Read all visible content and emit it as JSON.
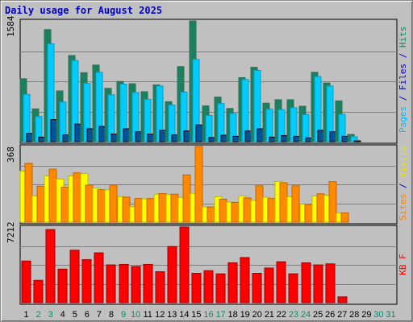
{
  "title": "Daily usage for August 2025",
  "chart_data": {
    "type": "bar",
    "title": "Daily usage for August 2025",
    "categories": [
      "1",
      "2",
      "3",
      "4",
      "5",
      "6",
      "7",
      "8",
      "9",
      "10",
      "11",
      "12",
      "13",
      "14",
      "15",
      "16",
      "17",
      "18",
      "19",
      "20",
      "21",
      "22",
      "23",
      "24",
      "25",
      "26",
      "27",
      "28",
      "29",
      "30",
      "31"
    ],
    "weekend_days": [
      "2",
      "3",
      "9",
      "10",
      "16",
      "17",
      "23",
      "24",
      "30",
      "31"
    ],
    "panels": [
      {
        "id": "hits-files-pages",
        "ymax_label": "1584",
        "ymax": 1584,
        "axis_label": [
          {
            "text": "Pages",
            "color": "#00bfff"
          },
          {
            "text": " / ",
            "color": "#0000c8"
          },
          {
            "text": "Files",
            "color": "#0000c8"
          },
          {
            "text": " / ",
            "color": "#0000c8"
          },
          {
            "text": "Hits",
            "color": "#00906b"
          }
        ],
        "series": [
          {
            "name": "Hits",
            "color": "#1a8060",
            "values": [
              825,
              430,
              1470,
              665,
              1130,
              905,
              1005,
              700,
              790,
              760,
              655,
              745,
              525,
              985,
              1584,
              470,
              585,
              435,
              840,
              975,
              505,
              550,
              550,
              465,
              910,
              770,
              535,
              95,
              0,
              0,
              0
            ]
          },
          {
            "name": "Files",
            "color": "#00ccff",
            "values": [
              620,
              330,
              1285,
              520,
              1065,
              765,
              910,
              615,
              755,
              645,
              555,
              730,
              480,
              650,
              1080,
              345,
              500,
              370,
              815,
              935,
              425,
              420,
              445,
              355,
              855,
              730,
              360,
              65,
              0,
              0,
              0
            ]
          },
          {
            "name": "Pages",
            "color": "#00529b",
            "values": [
              110,
              60,
              290,
              90,
              230,
              170,
              200,
              100,
              170,
              130,
              100,
              150,
              90,
              140,
              220,
              55,
              85,
              70,
              140,
              170,
              60,
              80,
              70,
              50,
              150,
              130,
              70,
              10,
              0,
              0,
              0
            ]
          }
        ]
      },
      {
        "id": "visits-sites",
        "ymax_label": "368",
        "ymax": 368,
        "axis_label": [
          {
            "text": "Sites",
            "color": "#ff8000"
          },
          {
            "text": " / ",
            "color": "#0000c8"
          },
          {
            "text": "Visits",
            "color": "#e6e600"
          }
        ],
        "series": [
          {
            "name": "Visits",
            "color": "#ffff00",
            "values": [
              248,
              128,
              225,
              210,
              225,
              236,
              165,
              157,
              124,
              75,
              113,
              136,
              134,
              120,
              140,
              74,
              124,
              98,
              127,
              106,
              121,
              198,
              124,
              88,
              127,
              130,
              44,
              0,
              0,
              0,
              0
            ]
          },
          {
            "name": "Sites",
            "color": "#ff8a00",
            "values": [
              286,
              175,
              258,
              170,
              240,
              180,
              158,
              180,
              122,
              115,
              115,
              139,
              136,
              230,
              368,
              74,
              112,
              96,
              118,
              177,
              115,
              192,
              177,
              87,
              138,
              197,
              45,
              0,
              0,
              0,
              0
            ]
          }
        ]
      },
      {
        "id": "kbytes",
        "ymax_label": "7212",
        "ymax": 7212,
        "axis_label": [
          {
            "text": "KB F",
            "color": "#ff0000"
          }
        ],
        "series": [
          {
            "name": "KB F",
            "color": "#ff0000",
            "values": [
              3970,
              2130,
              6970,
              3200,
              5000,
              4100,
              4750,
              3600,
              3650,
              3450,
              3650,
              2950,
              5350,
              7212,
              2800,
              3050,
              2750,
              3800,
              4300,
              2800,
              3300,
              3900,
              2750,
              3800,
              3600,
              3700,
              550,
              0,
              0,
              0,
              0
            ]
          }
        ]
      }
    ]
  }
}
